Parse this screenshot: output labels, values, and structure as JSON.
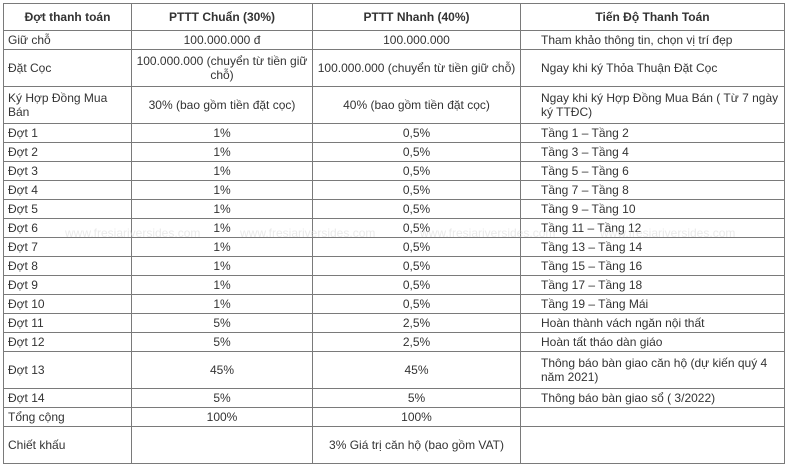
{
  "table": {
    "headers": [
      "Đợt thanh toán",
      "PTTT Chuẩn (30%)",
      "PTTT Nhanh (40%)",
      "Tiến Độ Thanh Toán"
    ],
    "rows": [
      {
        "c1": "Giữ chỗ",
        "c2": "100.000.000 đ",
        "c3": "100.000.000",
        "c4": "Tham khảo thông tin, chọn vị trí đẹp",
        "h": "h19"
      },
      {
        "c1": "Đặt Cọc",
        "c2": "100.000.000 (chuyển từ tiền giữ chỗ)",
        "c3": "100.000.000 (chuyển từ tiền giữ chỗ)",
        "c4": "Ngay khi ký Thỏa Thuận Đặt Cọc",
        "h": "h36"
      },
      {
        "c1": "Ký Hợp Đồng Mua Bán",
        "c2": "30% (bao gồm tiền đặt cọc)",
        "c3": "40% (bao gồm tiền đặt cọc)",
        "c4": "Ngay khi ký Hợp Đồng Mua Bán ( Từ 7 ngày ký TTĐC)",
        "h": "h36"
      },
      {
        "c1": "Đợt 1",
        "c2": "1%",
        "c3": "0,5%",
        "c4": "Tầng 1 – Tầng 2",
        "h": "h19"
      },
      {
        "c1": "Đợt 2",
        "c2": "1%",
        "c3": "0,5%",
        "c4": "Tầng 3 – Tầng 4",
        "h": "h19"
      },
      {
        "c1": "Đợt 3",
        "c2": "1%",
        "c3": "0,5%",
        "c4": "Tầng 5 – Tầng 6",
        "h": "h19"
      },
      {
        "c1": "Đợt 4",
        "c2": "1%",
        "c3": "0,5%",
        "c4": "Tầng 7 – Tầng 8",
        "h": "h19"
      },
      {
        "c1": "Đợt 5",
        "c2": "1%",
        "c3": "0,5%",
        "c4": "Tầng 9 – Tầng 10",
        "h": "h19"
      },
      {
        "c1": "Đợt 6",
        "c2": "1%",
        "c3": "0,5%",
        "c4": "Tầng 11 – Tầng 12",
        "h": "h19"
      },
      {
        "c1": "Đợt 7",
        "c2": "1%",
        "c3": "0,5%",
        "c4": "Tầng 13 – Tầng 14",
        "h": "h19"
      },
      {
        "c1": "Đợt 8",
        "c2": "1%",
        "c3": "0,5%",
        "c4": "Tầng 15 – Tầng 16",
        "h": "h19"
      },
      {
        "c1": "Đợt 9",
        "c2": "1%",
        "c3": "0,5%",
        "c4": "Tầng 17 – Tầng 18",
        "h": "h19"
      },
      {
        "c1": "Đợt 10",
        "c2": "1%",
        "c3": "0,5%",
        "c4": "Tầng 19 – Tầng Mái",
        "h": "h19"
      },
      {
        "c1": "Đợt 11",
        "c2": "5%",
        "c3": "2,5%",
        "c4": "Hoàn thành vách ngăn nội thất",
        "h": "h19"
      },
      {
        "c1": "Đợt 12",
        "c2": "5%",
        "c3": "2,5%",
        "c4": "Hoàn tất tháo dàn giáo",
        "h": "h19"
      },
      {
        "c1": "Đợt 13",
        "c2": "45%",
        "c3": "45%",
        "c4": "Thông báo bàn giao căn hộ (dự kiến quý 4 năm 2021)",
        "h": "h36"
      },
      {
        "c1": "Đợt 14",
        "c2": "5%",
        "c3": "5%",
        "c4": "Thông báo bàn giao sổ ( 3/2022)",
        "h": "h19"
      },
      {
        "c1": "Tổng cộng",
        "c2": "100%",
        "c3": "100%",
        "c4": "",
        "h": "h19"
      },
      {
        "c1": "Chiết khấu",
        "c2": "",
        "c3": "3% Giá trị căn hộ (bao gồm VAT)",
        "c4": "",
        "h": "h36"
      }
    ]
  },
  "watermark": {
    "text_1": "www.fresiariversides.com",
    "text_2": "www.fresiariversides.com",
    "text_3": "www.fresiariversides.com",
    "text_4": "www.fresiariversides.com"
  }
}
